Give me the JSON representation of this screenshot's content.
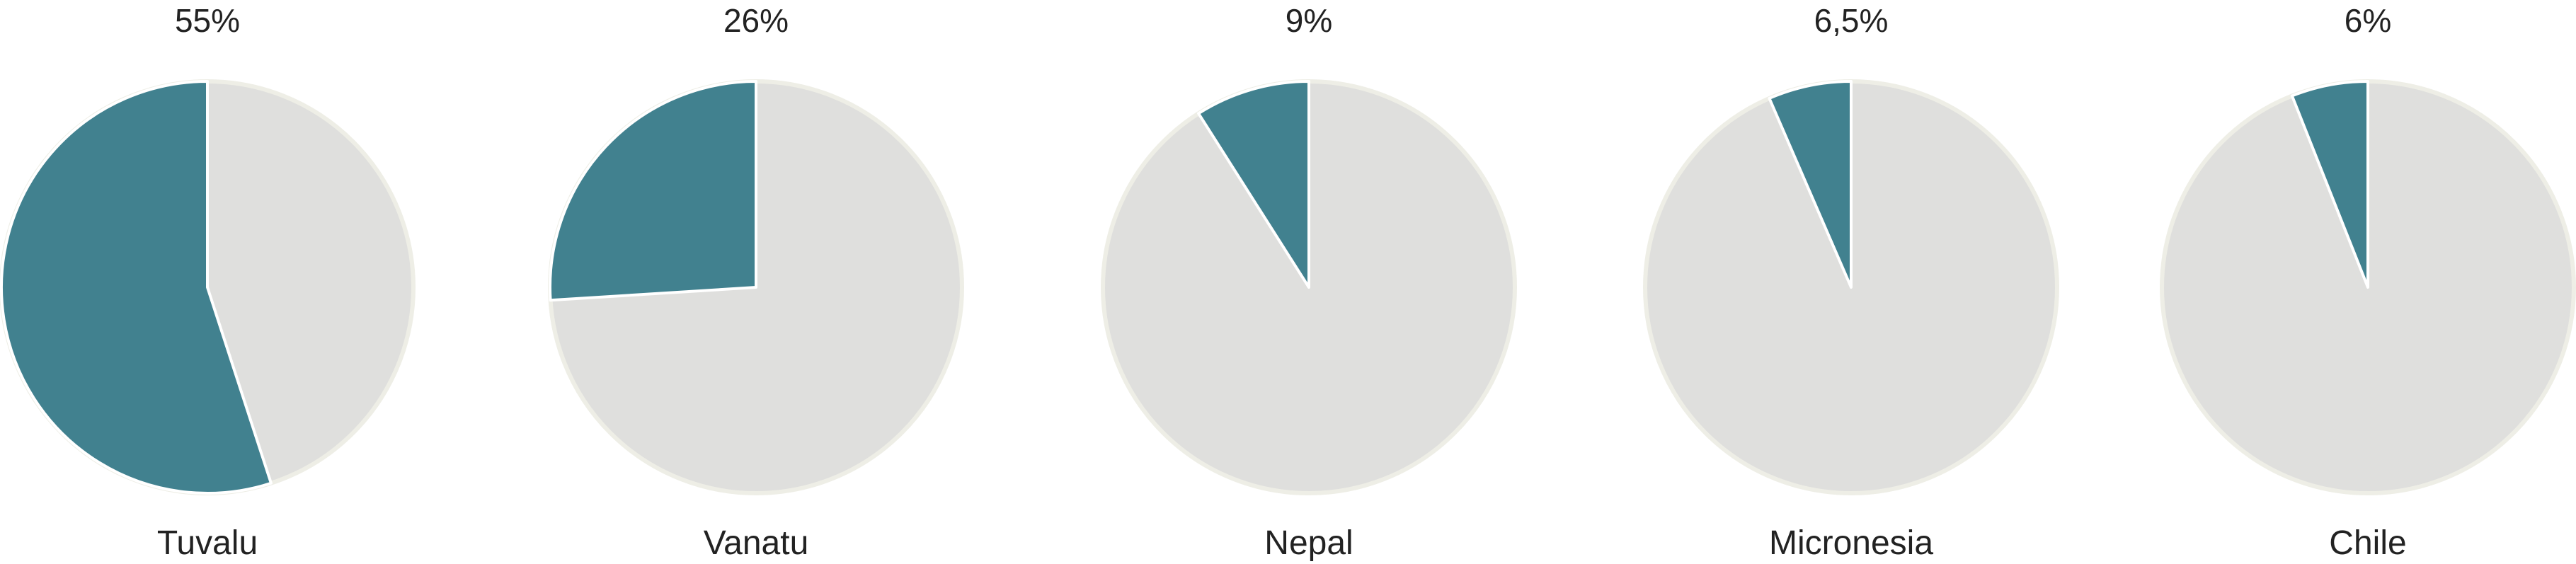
{
  "chart_data": {
    "type": "pie",
    "colors": {
      "share": "#41818f",
      "remainder": "#dfdfdd",
      "outline": "#eeeee6"
    },
    "charts": [
      {
        "country": "Tuvalu",
        "value": 55,
        "value_label": "55%"
      },
      {
        "country": "Vanatu",
        "value": 26,
        "value_label": "26%"
      },
      {
        "country": "Nepal",
        "value": 9,
        "value_label": "9%"
      },
      {
        "country": "Micronesia",
        "value": 6.5,
        "value_label": "6,5%"
      },
      {
        "country": "Chile",
        "value": 6,
        "value_label": "6%"
      }
    ]
  }
}
